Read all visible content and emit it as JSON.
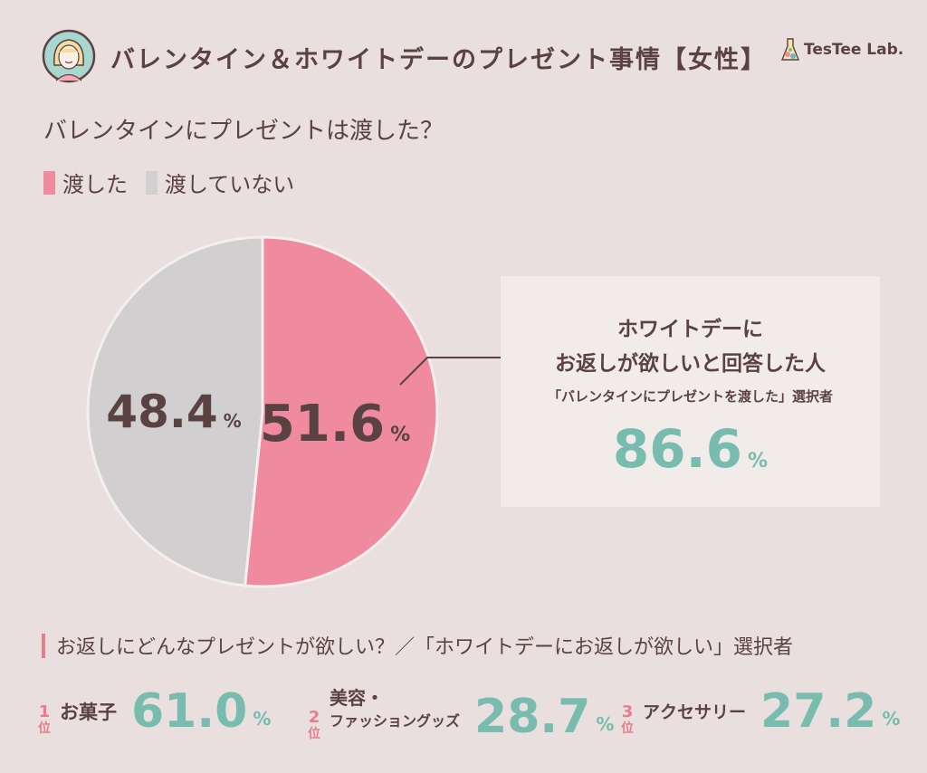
{
  "header": {
    "title": "バレンタイン＆ホワイトデーのプレゼント事情【女性】",
    "logo_text": "TesTee Lab."
  },
  "colors": {
    "pink": "#ef8a9f",
    "gray": "#d1cfcf",
    "teal": "#77bcae",
    "text": "#5b4242",
    "background": "#e9dfde"
  },
  "chart_data": {
    "type": "pie",
    "title": "バレンタインにプレゼントは渡した？",
    "legend": [
      "渡した",
      "渡していない"
    ],
    "slices": [
      {
        "label": "渡した",
        "value": 51.6,
        "display": "51.6",
        "color": "#ef8a9f"
      },
      {
        "label": "渡していない",
        "value": 48.4,
        "display": "48.4",
        "color": "#d1cfcf"
      }
    ],
    "unit": "%"
  },
  "callout": {
    "line1": "ホワイトデーに",
    "line2": "お返しが欲しいと回答した人",
    "sub": "「バレンタインにプレゼントを渡した」選択者",
    "value": "86.6",
    "unit": "%"
  },
  "ranking": {
    "heading": "お返しにどんなプレゼントが欲しい？／「ホワイトデーにお返しが欲しい」選択者",
    "rank_suffix": "位",
    "items": [
      {
        "rank": "1",
        "label": "お菓子",
        "label_line2": "",
        "value": "61.0",
        "unit": "%"
      },
      {
        "rank": "2",
        "label": "美容・",
        "label_line2": "ファッショングッズ",
        "value": "28.7",
        "unit": "%"
      },
      {
        "rank": "3",
        "label": "アクセサリー",
        "label_line2": "",
        "value": "27.2",
        "unit": "%"
      }
    ]
  }
}
